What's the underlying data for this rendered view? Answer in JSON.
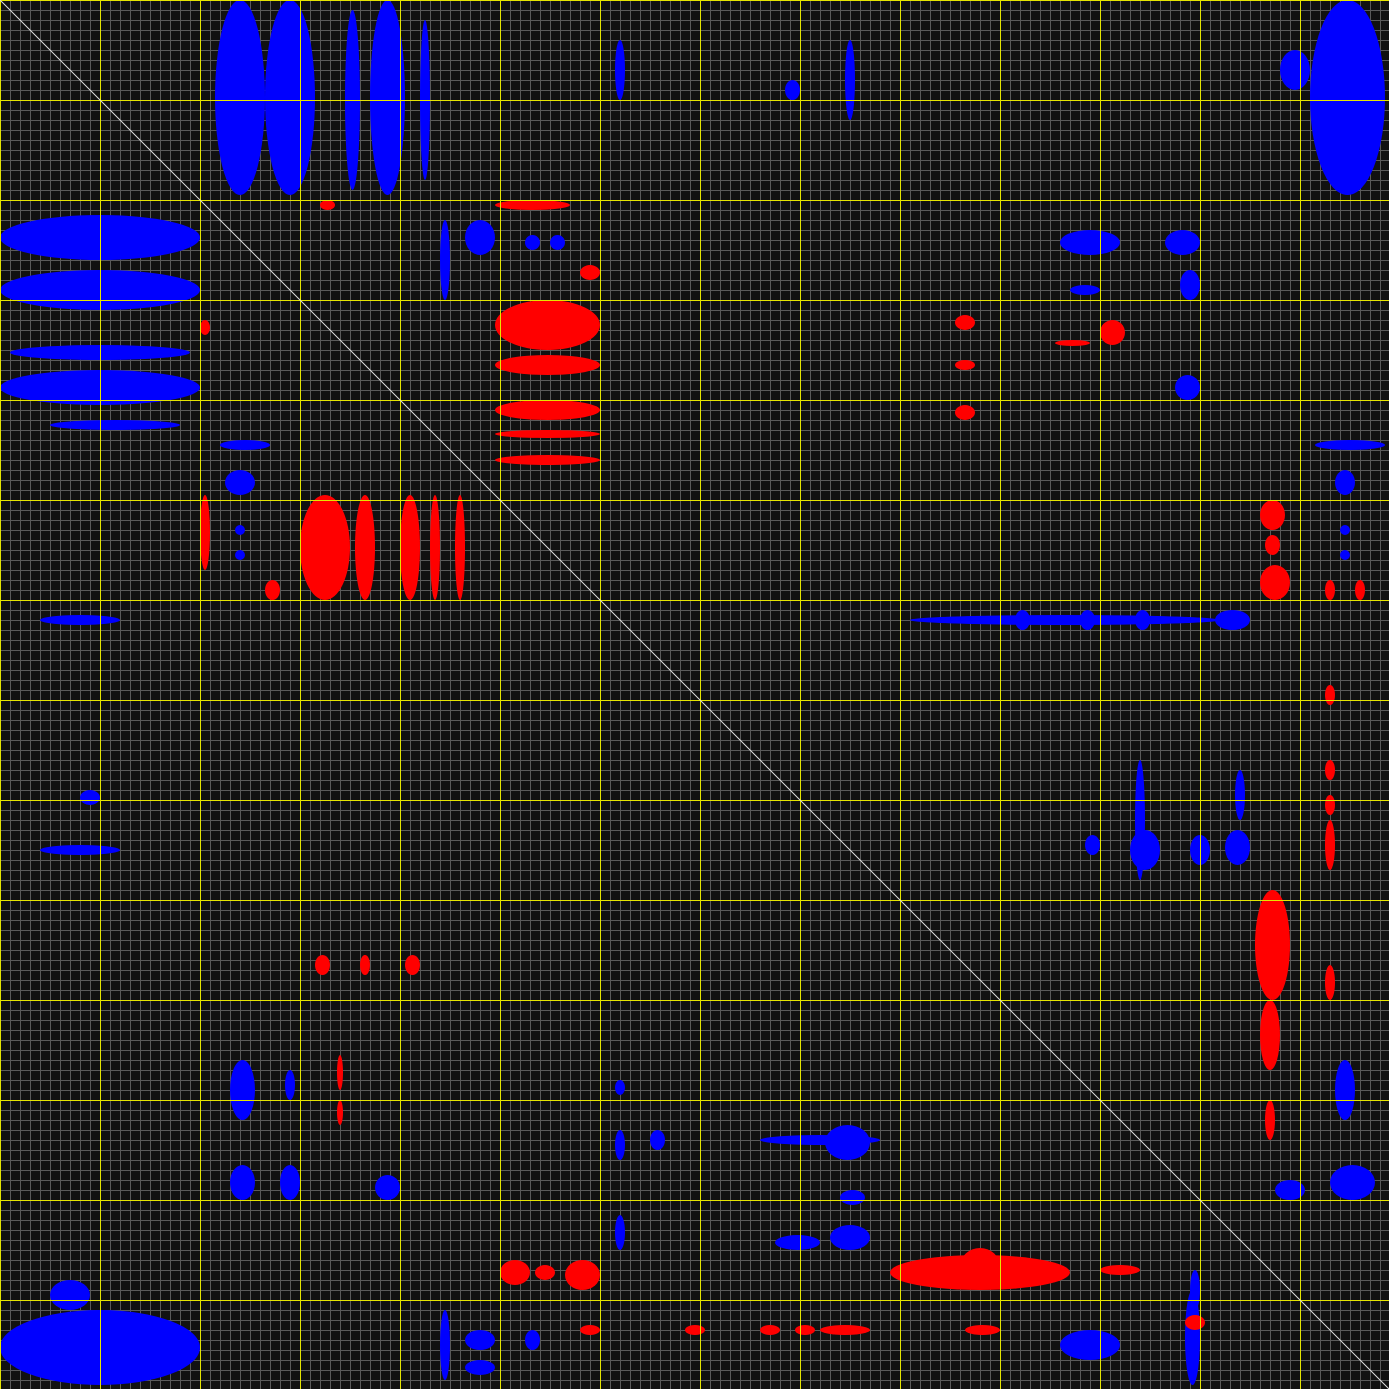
{
  "chart_data": {
    "type": "heatmap",
    "title": "",
    "xlabel": "",
    "ylabel": "",
    "xlim": [
      0,
      138.9
    ],
    "ylim": [
      0,
      138.9
    ],
    "grid": {
      "minor_step": 1,
      "major_step": 10,
      "minor_color": "#5a5a5a",
      "major_color": "#e6e600"
    },
    "diagonal_color": "#dddddd",
    "background": "#111111",
    "colors": {
      "positive": "#0000ff",
      "negative": "#ff0000"
    },
    "regions": [
      {
        "sign": "positive",
        "x": [
          21.5,
          26.5
        ],
        "y": [
          0,
          19.5
        ]
      },
      {
        "sign": "positive",
        "x": [
          26.5,
          31.5
        ],
        "y": [
          0,
          19.5
        ]
      },
      {
        "sign": "positive",
        "x": [
          34.5,
          36
        ],
        "y": [
          1,
          19
        ]
      },
      {
        "sign": "positive",
        "x": [
          37,
          40.5
        ],
        "y": [
          0,
          19.5
        ]
      },
      {
        "sign": "positive",
        "x": [
          42,
          43
        ],
        "y": [
          2,
          18
        ]
      },
      {
        "sign": "positive",
        "x": [
          131,
          138.5
        ],
        "y": [
          0,
          19.5
        ]
      },
      {
        "sign": "positive",
        "x": [
          128,
          131
        ],
        "y": [
          5,
          9
        ]
      },
      {
        "sign": "positive",
        "x": [
          61.5,
          62.5
        ],
        "y": [
          4,
          10
        ]
      },
      {
        "sign": "positive",
        "x": [
          78.5,
          80
        ],
        "y": [
          8,
          10
        ]
      },
      {
        "sign": "positive",
        "x": [
          84.5,
          85.5
        ],
        "y": [
          4,
          12
        ]
      },
      {
        "sign": "positive",
        "x": [
          0,
          20
        ],
        "y": [
          21.5,
          26
        ]
      },
      {
        "sign": "positive",
        "x": [
          0,
          20
        ],
        "y": [
          27,
          31
        ]
      },
      {
        "sign": "positive",
        "x": [
          1,
          19
        ],
        "y": [
          34.5,
          36
        ]
      },
      {
        "sign": "positive",
        "x": [
          0,
          20
        ],
        "y": [
          37,
          40.5
        ]
      },
      {
        "sign": "positive",
        "x": [
          5,
          18
        ],
        "y": [
          42,
          43
        ]
      },
      {
        "sign": "positive",
        "x": [
          46.5,
          49.5
        ],
        "y": [
          22,
          25.5
        ]
      },
      {
        "sign": "positive",
        "x": [
          44,
          45
        ],
        "y": [
          22,
          30
        ]
      },
      {
        "sign": "positive",
        "x": [
          52.5,
          54
        ],
        "y": [
          23.5,
          25
        ]
      },
      {
        "sign": "positive",
        "x": [
          55,
          56.5
        ],
        "y": [
          23.5,
          25
        ]
      },
      {
        "sign": "positive",
        "x": [
          106,
          112
        ],
        "y": [
          23,
          25.5
        ]
      },
      {
        "sign": "positive",
        "x": [
          116.5,
          120
        ],
        "y": [
          23,
          25.5
        ]
      },
      {
        "sign": "positive",
        "x": [
          107,
          110
        ],
        "y": [
          28.5,
          29.5
        ]
      },
      {
        "sign": "positive",
        "x": [
          118,
          120
        ],
        "y": [
          27,
          30
        ]
      },
      {
        "sign": "positive",
        "x": [
          117.5,
          120
        ],
        "y": [
          37.5,
          40
        ]
      },
      {
        "sign": "positive",
        "x": [
          22,
          27
        ],
        "y": [
          44,
          45
        ]
      },
      {
        "sign": "positive",
        "x": [
          22.5,
          25.5
        ],
        "y": [
          47,
          49.5
        ]
      },
      {
        "sign": "positive",
        "x": [
          23.5,
          24.5
        ],
        "y": [
          52.5,
          53.5
        ]
      },
      {
        "sign": "positive",
        "x": [
          23.5,
          24.5
        ],
        "y": [
          55,
          56
        ]
      },
      {
        "sign": "positive",
        "x": [
          131.5,
          138.5
        ],
        "y": [
          44,
          45
        ]
      },
      {
        "sign": "positive",
        "x": [
          133.5,
          135.5
        ],
        "y": [
          47,
          49.5
        ]
      },
      {
        "sign": "positive",
        "x": [
          134,
          135
        ],
        "y": [
          52.5,
          53.5
        ]
      },
      {
        "sign": "positive",
        "x": [
          134,
          135
        ],
        "y": [
          55,
          56
        ]
      },
      {
        "sign": "positive",
        "x": [
          4,
          12
        ],
        "y": [
          61.5,
          62.5
        ]
      },
      {
        "sign": "positive",
        "x": [
          91,
          122
        ],
        "y": [
          61.5,
          62.5
        ]
      },
      {
        "sign": "positive",
        "x": [
          113.5,
          115
        ],
        "y": [
          61,
          63
        ]
      },
      {
        "sign": "positive",
        "x": [
          121.5,
          125
        ],
        "y": [
          61,
          63
        ]
      },
      {
        "sign": "positive",
        "x": [
          108,
          109.5
        ],
        "y": [
          61,
          63
        ]
      },
      {
        "sign": "positive",
        "x": [
          101.5,
          103
        ],
        "y": [
          61,
          63
        ]
      },
      {
        "sign": "positive",
        "x": [
          8,
          10
        ],
        "y": [
          79,
          80.5
        ]
      },
      {
        "sign": "positive",
        "x": [
          4,
          12
        ],
        "y": [
          84.5,
          85.5
        ]
      },
      {
        "sign": "positive",
        "x": [
          113,
          116
        ],
        "y": [
          83,
          87
        ]
      },
      {
        "sign": "positive",
        "x": [
          113.5,
          114.5
        ],
        "y": [
          76,
          88
        ]
      },
      {
        "sign": "positive",
        "x": [
          119,
          121
        ],
        "y": [
          83.5,
          86.5
        ]
      },
      {
        "sign": "positive",
        "x": [
          122.5,
          125
        ],
        "y": [
          83,
          86.5
        ]
      },
      {
        "sign": "positive",
        "x": [
          123.5,
          124.5
        ],
        "y": [
          77,
          82
        ]
      },
      {
        "sign": "positive",
        "x": [
          108.5,
          110
        ],
        "y": [
          83.5,
          85.5
        ]
      },
      {
        "sign": "positive",
        "x": [
          23,
          25.5
        ],
        "y": [
          106,
          112
        ]
      },
      {
        "sign": "positive",
        "x": [
          28.5,
          29.5
        ],
        "y": [
          107,
          110
        ]
      },
      {
        "sign": "positive",
        "x": [
          23,
          25.5
        ],
        "y": [
          116.5,
          120
        ]
      },
      {
        "sign": "positive",
        "x": [
          28,
          30
        ],
        "y": [
          116.5,
          120
        ]
      },
      {
        "sign": "positive",
        "x": [
          37.5,
          40
        ],
        "y": [
          117.5,
          120
        ]
      },
      {
        "sign": "positive",
        "x": [
          61.5,
          62.5
        ],
        "y": [
          108,
          109.5
        ]
      },
      {
        "sign": "positive",
        "x": [
          61.5,
          62.5
        ],
        "y": [
          113,
          116
        ]
      },
      {
        "sign": "positive",
        "x": [
          65,
          66.5
        ],
        "y": [
          113,
          115
        ]
      },
      {
        "sign": "positive",
        "x": [
          61.5,
          62.5
        ],
        "y": [
          121.5,
          125
        ]
      },
      {
        "sign": "positive",
        "x": [
          76,
          88
        ],
        "y": [
          113.5,
          114.5
        ]
      },
      {
        "sign": "positive",
        "x": [
          82.5,
          87
        ],
        "y": [
          112.5,
          116
        ]
      },
      {
        "sign": "positive",
        "x": [
          84,
          86.5
        ],
        "y": [
          119,
          120.5
        ]
      },
      {
        "sign": "positive",
        "x": [
          83,
          87
        ],
        "y": [
          122.5,
          125
        ]
      },
      {
        "sign": "positive",
        "x": [
          77.5,
          82
        ],
        "y": [
          123.5,
          125
        ]
      },
      {
        "sign": "positive",
        "x": [
          133.5,
          135.5
        ],
        "y": [
          106,
          112
        ]
      },
      {
        "sign": "positive",
        "x": [
          133,
          137.5
        ],
        "y": [
          116.5,
          120
        ]
      },
      {
        "sign": "positive",
        "x": [
          127.5,
          130.5
        ],
        "y": [
          118,
          120
        ]
      },
      {
        "sign": "positive",
        "x": [
          0,
          20
        ],
        "y": [
          131,
          138.5
        ]
      },
      {
        "sign": "positive",
        "x": [
          5,
          9
        ],
        "y": [
          128,
          131
        ]
      },
      {
        "sign": "positive",
        "x": [
          44,
          45
        ],
        "y": [
          131,
          138
        ]
      },
      {
        "sign": "positive",
        "x": [
          46.5,
          49.5
        ],
        "y": [
          133,
          135
        ]
      },
      {
        "sign": "positive",
        "x": [
          46.5,
          49.5
        ],
        "y": [
          136,
          137.5
        ]
      },
      {
        "sign": "positive",
        "x": [
          52.5,
          54
        ],
        "y": [
          133,
          135
        ]
      },
      {
        "sign": "positive",
        "x": [
          106,
          112
        ],
        "y": [
          133,
          136
        ]
      },
      {
        "sign": "positive",
        "x": [
          118.5,
          120
        ],
        "y": [
          129,
          138.5
        ]
      },
      {
        "sign": "positive",
        "x": [
          119,
          120
        ],
        "y": [
          127,
          131
        ]
      },
      {
        "sign": "negative",
        "x": [
          49.5,
          60
        ],
        "y": [
          30,
          35
        ]
      },
      {
        "sign": "negative",
        "x": [
          49.5,
          60
        ],
        "y": [
          35.5,
          37.5
        ]
      },
      {
        "sign": "negative",
        "x": [
          49.5,
          60
        ],
        "y": [
          40,
          42
        ]
      },
      {
        "sign": "negative",
        "x": [
          49.5,
          60
        ],
        "y": [
          43,
          43.8
        ]
      },
      {
        "sign": "negative",
        "x": [
          49.5,
          60
        ],
        "y": [
          45.5,
          46.5
        ]
      },
      {
        "sign": "negative",
        "x": [
          49.5,
          57
        ],
        "y": [
          20,
          21
        ]
      },
      {
        "sign": "negative",
        "x": [
          58,
          60
        ],
        "y": [
          26.5,
          28
        ]
      },
      {
        "sign": "negative",
        "x": [
          30,
          35
        ],
        "y": [
          49.5,
          60
        ]
      },
      {
        "sign": "negative",
        "x": [
          35.5,
          37.5
        ],
        "y": [
          49.5,
          60
        ]
      },
      {
        "sign": "negative",
        "x": [
          40,
          42
        ],
        "y": [
          49.5,
          60
        ]
      },
      {
        "sign": "negative",
        "x": [
          43,
          44
        ],
        "y": [
          49.5,
          60
        ]
      },
      {
        "sign": "negative",
        "x": [
          45.5,
          46.5
        ],
        "y": [
          49.5,
          60
        ]
      },
      {
        "sign": "negative",
        "x": [
          20,
          21
        ],
        "y": [
          49.5,
          57
        ]
      },
      {
        "sign": "negative",
        "x": [
          26.5,
          28
        ],
        "y": [
          58,
          60
        ]
      },
      {
        "sign": "negative",
        "x": [
          95.5,
          97.5
        ],
        "y": [
          31.5,
          33
        ]
      },
      {
        "sign": "negative",
        "x": [
          95.5,
          97.5
        ],
        "y": [
          36,
          37
        ]
      },
      {
        "sign": "negative",
        "x": [
          95.5,
          97.5
        ],
        "y": [
          40.5,
          42
        ]
      },
      {
        "sign": "negative",
        "x": [
          105.5,
          109
        ],
        "y": [
          34,
          34.6
        ]
      },
      {
        "sign": "negative",
        "x": [
          110,
          112.5
        ],
        "y": [
          32,
          34.5
        ]
      },
      {
        "sign": "negative",
        "x": [
          126,
          128.5
        ],
        "y": [
          50,
          53
        ]
      },
      {
        "sign": "negative",
        "x": [
          126.5,
          128
        ],
        "y": [
          53.5,
          55.5
        ]
      },
      {
        "sign": "negative",
        "x": [
          126,
          129
        ],
        "y": [
          56.5,
          60
        ]
      },
      {
        "sign": "negative",
        "x": [
          132.5,
          133.5
        ],
        "y": [
          58,
          60
        ]
      },
      {
        "sign": "negative",
        "x": [
          135.5,
          136.5
        ],
        "y": [
          58,
          60
        ]
      },
      {
        "sign": "negative",
        "x": [
          132.5,
          133.5
        ],
        "y": [
          68.5,
          70.5
        ]
      },
      {
        "sign": "negative",
        "x": [
          132.5,
          133.5
        ],
        "y": [
          76,
          78
        ]
      },
      {
        "sign": "negative",
        "x": [
          132.5,
          133.5
        ],
        "y": [
          79.5,
          81.5
        ]
      },
      {
        "sign": "negative",
        "x": [
          132.5,
          133.5
        ],
        "y": [
          82,
          87
        ]
      },
      {
        "sign": "negative",
        "x": [
          125.5,
          129
        ],
        "y": [
          89,
          100
        ]
      },
      {
        "sign": "negative",
        "x": [
          126,
          128
        ],
        "y": [
          100,
          107
        ]
      },
      {
        "sign": "negative",
        "x": [
          132.5,
          133.5
        ],
        "y": [
          96.5,
          100
        ]
      },
      {
        "sign": "negative",
        "x": [
          126.5,
          127.5
        ],
        "y": [
          110,
          114
        ]
      },
      {
        "sign": "negative",
        "x": [
          31.5,
          33
        ],
        "y": [
          95.5,
          97.5
        ]
      },
      {
        "sign": "negative",
        "x": [
          36,
          37
        ],
        "y": [
          95.5,
          97.5
        ]
      },
      {
        "sign": "negative",
        "x": [
          40.5,
          42
        ],
        "y": [
          95.5,
          97.5
        ]
      },
      {
        "sign": "negative",
        "x": [
          33.7,
          34.3
        ],
        "y": [
          105.5,
          109
        ]
      },
      {
        "sign": "negative",
        "x": [
          33.7,
          34.3
        ],
        "y": [
          110,
          112.5
        ]
      },
      {
        "sign": "negative",
        "x": [
          89,
          107
        ],
        "y": [
          125.5,
          129
        ]
      },
      {
        "sign": "negative",
        "x": [
          96,
          100
        ],
        "y": [
          124.8,
          128.5
        ]
      },
      {
        "sign": "negative",
        "x": [
          110,
          114
        ],
        "y": [
          126.5,
          127.5
        ]
      },
      {
        "sign": "negative",
        "x": [
          50,
          53
        ],
        "y": [
          126,
          128.5
        ]
      },
      {
        "sign": "negative",
        "x": [
          53.5,
          55.5
        ],
        "y": [
          126.5,
          128
        ]
      },
      {
        "sign": "negative",
        "x": [
          56.5,
          60
        ],
        "y": [
          126,
          129
        ]
      },
      {
        "sign": "negative",
        "x": [
          58,
          60
        ],
        "y": [
          132.5,
          133.5
        ]
      },
      {
        "sign": "negative",
        "x": [
          68.5,
          70.5
        ],
        "y": [
          132.5,
          133.5
        ]
      },
      {
        "sign": "negative",
        "x": [
          76,
          78
        ],
        "y": [
          132.5,
          133.5
        ]
      },
      {
        "sign": "negative",
        "x": [
          79.5,
          81.5
        ],
        "y": [
          132.5,
          133.5
        ]
      },
      {
        "sign": "negative",
        "x": [
          82,
          87
        ],
        "y": [
          132.5,
          133.5
        ]
      },
      {
        "sign": "negative",
        "x": [
          96.5,
          100
        ],
        "y": [
          132.5,
          133.5
        ]
      },
      {
        "sign": "negative",
        "x": [
          118.5,
          120.5
        ],
        "y": [
          131.5,
          133
        ]
      },
      {
        "sign": "negative",
        "x": [
          20,
          21
        ],
        "y": [
          32,
          33.5
        ]
      },
      {
        "sign": "negative",
        "x": [
          32,
          33.5
        ],
        "y": [
          20,
          21
        ]
      }
    ]
  }
}
